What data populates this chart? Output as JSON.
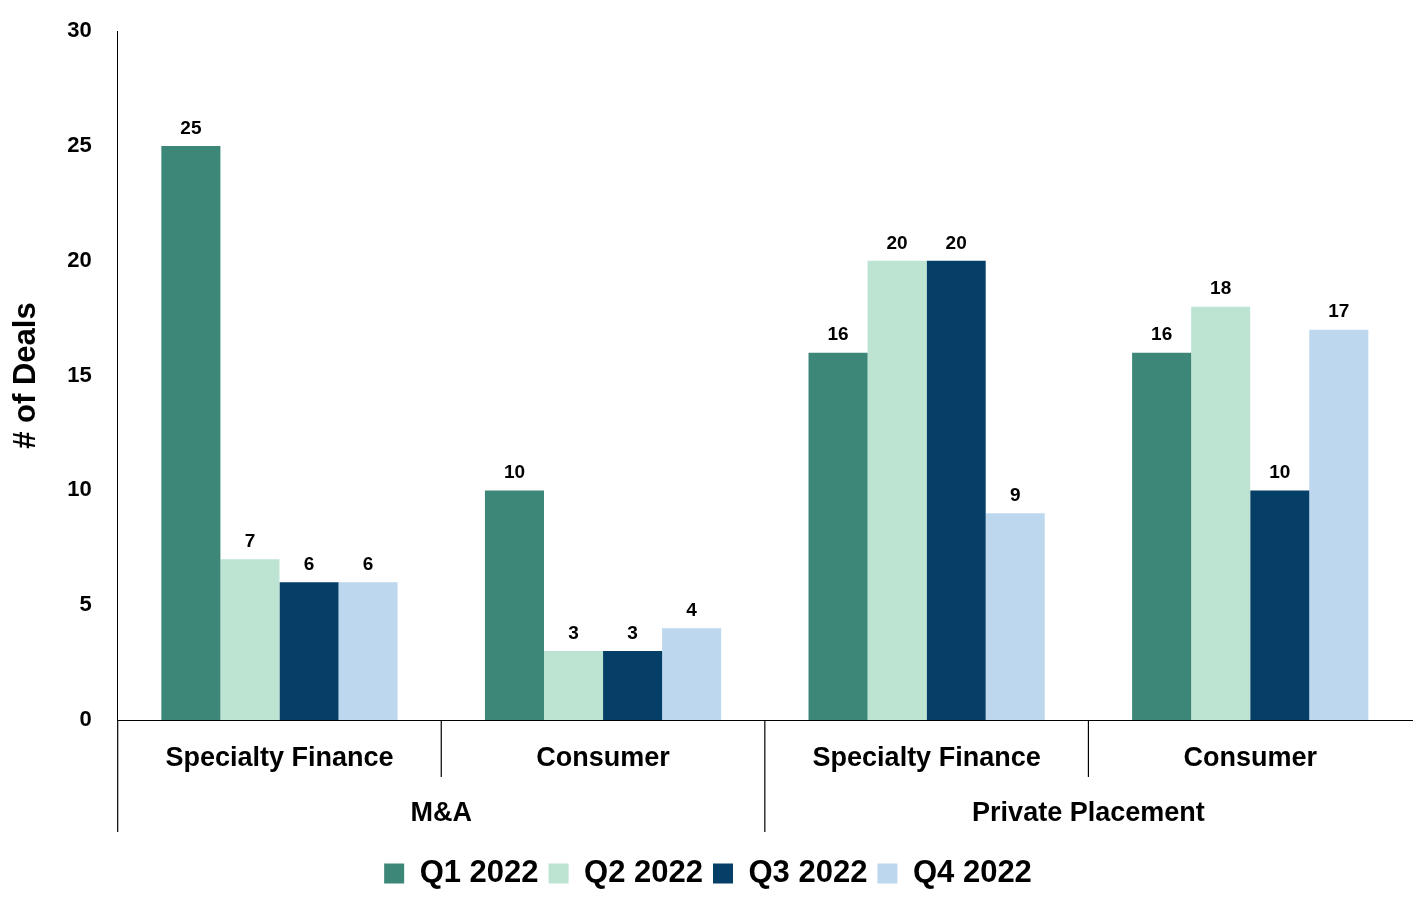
{
  "chart_data": {
    "type": "bar",
    "ylabel": "# of Deals",
    "categories": [
      "Specialty Finance",
      "Consumer",
      "Specialty Finance",
      "Consumer"
    ],
    "annotations": [
      "M&A",
      "Private Placement"
    ],
    "series": [
      {
        "name": "Q1 2022",
        "color": "#3d8778",
        "values": [
          25,
          10,
          16,
          16
        ]
      },
      {
        "name": "Q2 2022",
        "color": "#bde3d3",
        "values": [
          7,
          3,
          20,
          18
        ]
      },
      {
        "name": "Q3 2022",
        "color": "#053e66",
        "values": [
          6,
          3,
          20,
          10
        ]
      },
      {
        "name": "Q4 2022",
        "color": "#bdd7ee",
        "values": [
          6,
          4,
          9,
          17
        ]
      }
    ],
    "ylim": [
      0,
      30
    ],
    "yticks": [
      0,
      5,
      10,
      15,
      20,
      25,
      30
    ],
    "grid": false,
    "legend": "bottom",
    "data_labels": true
  }
}
